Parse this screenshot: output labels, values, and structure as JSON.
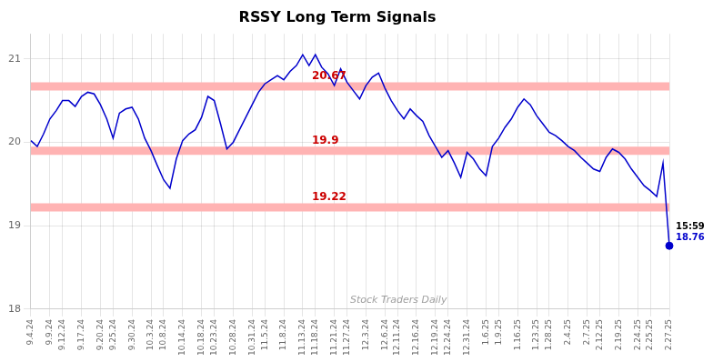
{
  "chart_data": {
    "type": "line",
    "title": "RSSY Long Term Signals",
    "watermark": "Stock Traders Daily",
    "color": "#0000cc",
    "grid": true,
    "ylim": [
      18.0,
      21.3
    ],
    "yticks": [
      18,
      19,
      20,
      21
    ],
    "hlines": [
      {
        "y": 20.67,
        "label": "20.67",
        "color": "#ffb3b3",
        "label_color": "#cc0000"
      },
      {
        "y": 19.9,
        "label": "19.9",
        "color": "#ffb3b3",
        "label_color": "#cc0000"
      },
      {
        "y": 19.22,
        "label": "19.22",
        "color": "#ffb3b3",
        "label_color": "#cc0000"
      }
    ],
    "last_point": {
      "value": 18.76,
      "time": "15:59",
      "label": "18.76",
      "marker": "circle"
    },
    "categories": [
      "9.4.24",
      null,
      null,
      "9.9.24",
      null,
      "9.12.24",
      null,
      null,
      "9.17.24",
      null,
      null,
      "9.20.24",
      null,
      "9.25.24",
      null,
      null,
      "9.30.24",
      null,
      null,
      "10.3.24",
      null,
      "10.8.24",
      null,
      null,
      "10.14.24",
      null,
      null,
      "10.18.24",
      null,
      "10.23.24",
      null,
      null,
      "10.28.24",
      null,
      null,
      "10.31.24",
      null,
      "11.5.24",
      null,
      null,
      "11.8.24",
      null,
      null,
      "11.13.24",
      null,
      "11.18.24",
      null,
      null,
      "11.21.24",
      null,
      "11.27.24",
      null,
      null,
      "12.3.24",
      null,
      null,
      "12.6.24",
      null,
      "12.11.24",
      null,
      null,
      "12.16.24",
      null,
      null,
      "12.19.24",
      null,
      "12.24.24",
      null,
      null,
      "12.31.24",
      null,
      null,
      "1.6.25",
      null,
      "1.9.25",
      null,
      null,
      "1.16.25",
      null,
      null,
      "1.23.25",
      null,
      "1.28.25",
      null,
      null,
      "2.4.25",
      null,
      null,
      "2.7.25",
      null,
      "2.12.25",
      null,
      null,
      "2.19.25",
      null,
      null,
      "2.24.25",
      null,
      "2.25.25",
      null,
      null,
      "2.27.25"
    ],
    "values": [
      20.02,
      19.95,
      20.1,
      20.28,
      20.38,
      20.5,
      20.5,
      20.43,
      20.55,
      20.6,
      20.58,
      20.45,
      20.28,
      20.05,
      20.35,
      20.4,
      20.42,
      20.28,
      20.05,
      19.9,
      19.72,
      19.55,
      19.45,
      19.8,
      20.02,
      20.1,
      20.15,
      20.3,
      20.55,
      20.5,
      20.22,
      19.92,
      20.0,
      20.15,
      20.3,
      20.45,
      20.6,
      20.7,
      20.75,
      20.8,
      20.75,
      20.85,
      20.92,
      21.05,
      20.92,
      21.05,
      20.9,
      20.82,
      20.68,
      20.88,
      20.72,
      20.62,
      20.52,
      20.68,
      20.78,
      20.83,
      20.65,
      20.5,
      20.38,
      20.28,
      20.4,
      20.32,
      20.25,
      20.08,
      19.95,
      19.82,
      19.9,
      19.75,
      19.58,
      19.88,
      19.8,
      19.68,
      19.6,
      19.95,
      20.05,
      20.18,
      20.28,
      20.42,
      20.52,
      20.45,
      20.32,
      20.22,
      20.12,
      20.08,
      20.02,
      19.95,
      19.9,
      19.82,
      19.75,
      19.68,
      19.65,
      19.82,
      19.92,
      19.88,
      19.8,
      19.68,
      19.58,
      19.48,
      19.42,
      19.35,
      19.75,
      18.76
    ]
  }
}
